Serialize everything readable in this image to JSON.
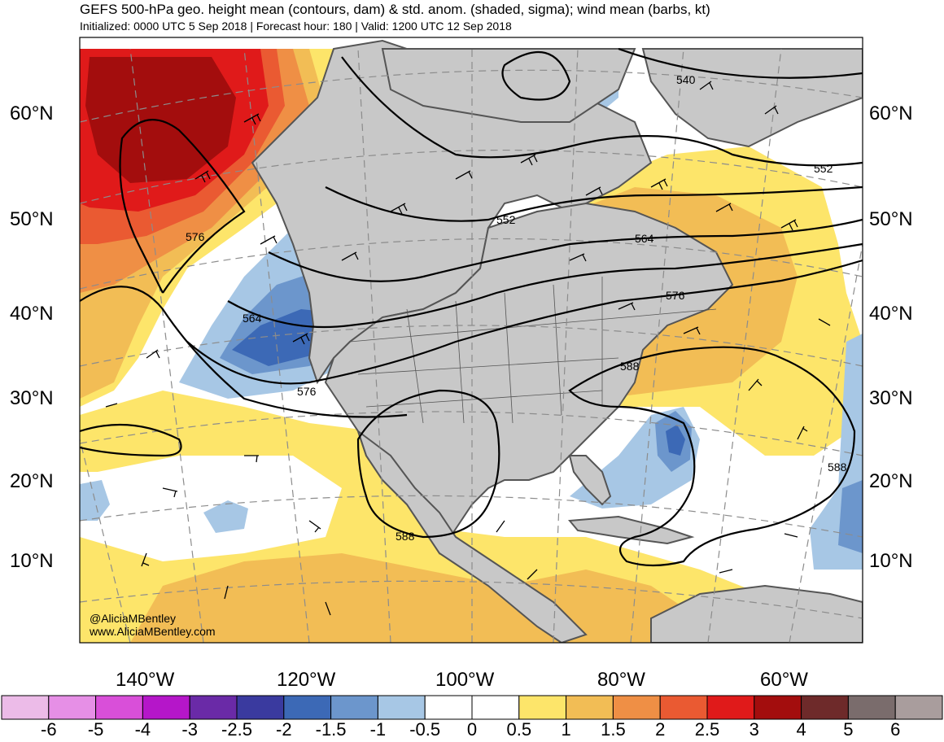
{
  "header": {
    "title": "GEFS 500-hPa geo. height mean (contours, dam) & std. anom. (shaded, sigma); wind mean (barbs, kt)",
    "subtitle": "Initialized: 0000 UTC 5 Sep 2018 | Forecast hour: 180 | Valid: 1200 UTC 12 Sep 2018"
  },
  "map": {
    "lat_labels": [
      "60°N",
      "50°N",
      "40°N",
      "30°N",
      "20°N",
      "10°N"
    ],
    "lon_labels": [
      "140°W",
      "120°W",
      "100°W",
      "80°W",
      "60°W"
    ],
    "contour_labels": [
      "540",
      "552",
      "552",
      "564",
      "564",
      "576",
      "576",
      "576",
      "588",
      "588",
      "588"
    ],
    "credits": [
      "@AliciaMBentley",
      "www.AliciaMBentley.com"
    ]
  },
  "colorbar": {
    "labels": [
      "-6",
      "-5",
      "-4",
      "-3",
      "-2.5",
      "-2",
      "-1.5",
      "-1",
      "-0.5",
      "0",
      "0.5",
      "1",
      "1.5",
      "2",
      "2.5",
      "3",
      "4",
      "5",
      "6"
    ],
    "colors": [
      "#ecbbe8",
      "#e68fe6",
      "#d94fd9",
      "#b516c9",
      "#6a2aa7",
      "#3a3a9f",
      "#3c69b6",
      "#6c96cc",
      "#a7c7e5",
      "#ffffff",
      "#ffffff",
      "#fde56a",
      "#f2bd55",
      "#ef8f45",
      "#ea5a32",
      "#e01a1a",
      "#a30d0d",
      "#6e2a2a",
      "#7a6c6c",
      "#a99d9d"
    ]
  },
  "colors": {
    "land": "#c8c8c8",
    "coast": "#555555",
    "contour": "#000000",
    "grid": "#8c8c8c"
  }
}
